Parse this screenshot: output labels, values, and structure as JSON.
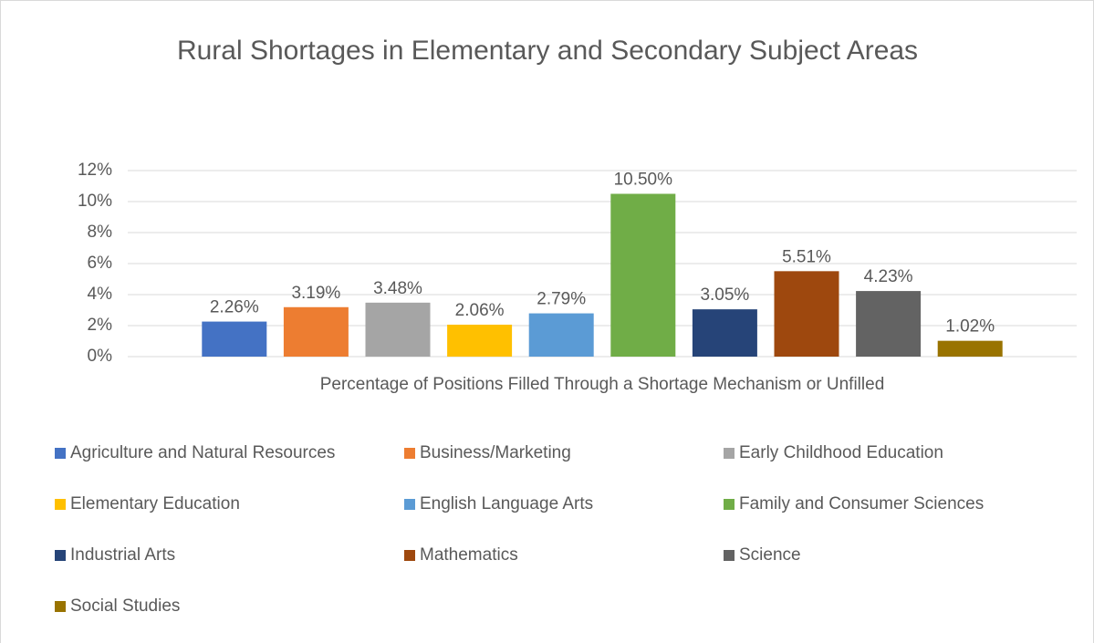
{
  "chart_data": {
    "type": "bar",
    "title": "Rural Shortages in Elementary and Secondary Subject Areas",
    "categories": [
      "Percentage of Positions Filled Through a Shortage Mechanism or Unfilled"
    ],
    "series": [
      {
        "name": "Agriculture and Natural Resources",
        "color": "#4472c4",
        "values": [
          2.26
        ],
        "value_labels": [
          "2.26%"
        ]
      },
      {
        "name": "Business/Marketing",
        "color": "#ed7d31",
        "values": [
          3.19
        ],
        "value_labels": [
          "3.19%"
        ]
      },
      {
        "name": "Early Childhood Education",
        "color": "#a5a5a5",
        "values": [
          3.48
        ],
        "value_labels": [
          "3.48%"
        ]
      },
      {
        "name": "Elementary Education",
        "color": "#ffc000",
        "values": [
          2.06
        ],
        "value_labels": [
          "2.06%"
        ]
      },
      {
        "name": "English Language Arts",
        "color": "#5b9bd5",
        "values": [
          2.79
        ],
        "value_labels": [
          "2.79%"
        ]
      },
      {
        "name": "Family and Consumer Sciences",
        "color": "#70ad47",
        "values": [
          10.5
        ],
        "value_labels": [
          "10.50%"
        ]
      },
      {
        "name": "Industrial Arts",
        "color": "#264478",
        "values": [
          3.05
        ],
        "value_labels": [
          "3.05%"
        ]
      },
      {
        "name": "Mathematics",
        "color": "#9e480e",
        "values": [
          5.51
        ],
        "value_labels": [
          "5.51%"
        ]
      },
      {
        "name": "Science",
        "color": "#636363",
        "values": [
          4.23
        ],
        "value_labels": [
          "4.23%"
        ]
      },
      {
        "name": "Social Studies",
        "color": "#997300",
        "values": [
          1.02
        ],
        "value_labels": [
          "1.02%"
        ]
      }
    ],
    "ylim": [
      0,
      12
    ],
    "yticks": [
      {
        "value": 0,
        "label": "0%"
      },
      {
        "value": 2,
        "label": "2%"
      },
      {
        "value": 4,
        "label": "4%"
      },
      {
        "value": 6,
        "label": "6%"
      },
      {
        "value": 8,
        "label": "8%"
      },
      {
        "value": 10,
        "label": "10%"
      },
      {
        "value": 12,
        "label": "12%"
      }
    ],
    "grid": true,
    "legend": "bottom"
  }
}
